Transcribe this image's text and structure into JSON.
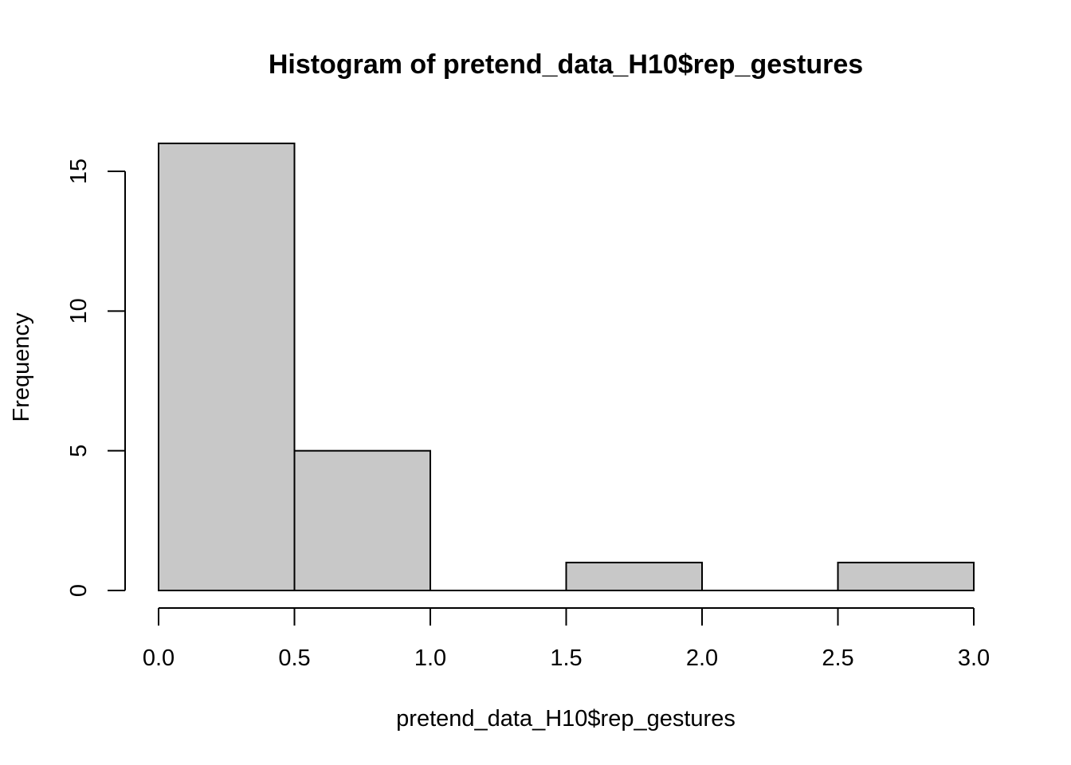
{
  "chart_data": {
    "type": "bar",
    "title": "Histogram of pretend_data_H10$rep_gestures",
    "xlabel": "pretend_data_H10$rep_gestures",
    "ylabel": "Frequency",
    "bins": [
      {
        "from": 0.0,
        "to": 0.5,
        "count": 16
      },
      {
        "from": 0.5,
        "to": 1.0,
        "count": 5
      },
      {
        "from": 1.0,
        "to": 1.5,
        "count": 0
      },
      {
        "from": 1.5,
        "to": 2.0,
        "count": 1
      },
      {
        "from": 2.0,
        "to": 2.5,
        "count": 0
      },
      {
        "from": 2.5,
        "to": 3.0,
        "count": 1
      }
    ],
    "x_ticks": [
      "0.0",
      "0.5",
      "1.0",
      "1.5",
      "2.0",
      "2.5",
      "3.0"
    ],
    "y_ticks": [
      "0",
      "5",
      "10",
      "15"
    ],
    "xlim": [
      0,
      3
    ],
    "ylim": [
      0,
      15
    ],
    "bar_color": "#c8c8c8",
    "grid": false
  }
}
